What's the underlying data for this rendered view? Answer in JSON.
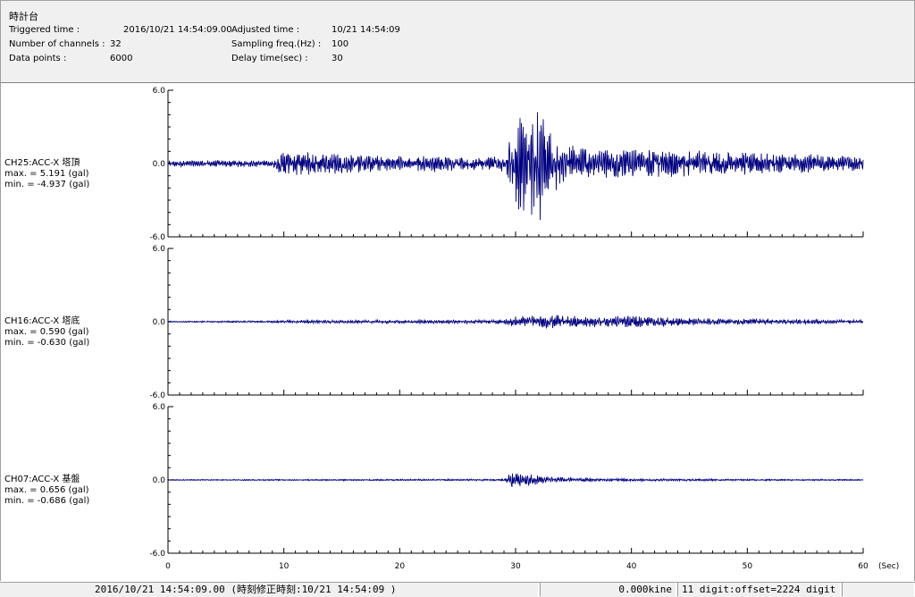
{
  "header": {
    "title": "時計台",
    "triggered_label": "Triggered time :",
    "triggered_value": "2016/10/21 14:54:09.00",
    "channels_label": "Number of channels :",
    "channels_value": "32",
    "datapoints_label": "Data points :",
    "datapoints_value": "6000",
    "adjusted_label": "Adjusted time :",
    "adjusted_value": "10/21 14:54:09",
    "sampling_label": "Sampling freq.(Hz) :",
    "sampling_value": "100",
    "delay_label": "Delay time(sec) :",
    "delay_value": "30"
  },
  "channels": [
    {
      "name": "CH25:ACC-X 塔頂",
      "max": "max. = 5.191 (gal)",
      "min": "min. = -4.937 (gal)"
    },
    {
      "name": "CH16:ACC-X 塔底",
      "max": "max. = 0.590 (gal)",
      "min": "min. = -0.630 (gal)"
    },
    {
      "name": "CH07:ACC-X 基盤",
      "max": "max. = 0.656 (gal)",
      "min": "min. = -0.686 (gal)"
    }
  ],
  "status": {
    "time": "2016/10/21 14:54:09.00  (時刻修正時刻:10/21 14:54:09  )",
    "kine": "0.000kine",
    "digit": "11 digit:offset=2224 digit"
  },
  "chart_data": {
    "type": "line",
    "x_unit": "(Sec)",
    "xlim": [
      0,
      60
    ],
    "x_ticks": [
      0,
      10,
      20,
      30,
      40,
      50,
      60
    ],
    "y_ticks": [
      "6.0",
      "0.0",
      "-6.0"
    ],
    "ylim": [
      -6,
      6
    ],
    "line_color": "#000080",
    "series": [
      {
        "name": "CH25:ACC-X 塔頂",
        "max": 5.191,
        "min": -4.937,
        "envelope": [
          [
            0,
            0.25
          ],
          [
            9,
            0.3
          ],
          [
            10,
            1.1
          ],
          [
            14,
            0.9
          ],
          [
            20,
            0.7
          ],
          [
            29,
            0.7
          ],
          [
            30,
            3.8
          ],
          [
            31,
            4.6
          ],
          [
            32,
            5.0
          ],
          [
            33,
            2.8
          ],
          [
            35,
            1.5
          ],
          [
            40,
            1.2
          ],
          [
            50,
            1.0
          ],
          [
            60,
            0.6
          ]
        ]
      },
      {
        "name": "CH16:ACC-X 塔底",
        "max": 0.59,
        "min": -0.63,
        "envelope": [
          [
            0,
            0.05
          ],
          [
            9,
            0.08
          ],
          [
            10,
            0.12
          ],
          [
            20,
            0.14
          ],
          [
            29,
            0.18
          ],
          [
            30,
            0.45
          ],
          [
            33,
            0.6
          ],
          [
            36,
            0.45
          ],
          [
            41,
            0.5
          ],
          [
            45,
            0.3
          ],
          [
            60,
            0.15
          ]
        ]
      },
      {
        "name": "CH07:ACC-X 基盤",
        "max": 0.656,
        "min": -0.686,
        "envelope": [
          [
            0,
            0.04
          ],
          [
            10,
            0.06
          ],
          [
            20,
            0.07
          ],
          [
            29,
            0.08
          ],
          [
            29.6,
            0.65
          ],
          [
            31,
            0.5
          ],
          [
            33,
            0.25
          ],
          [
            40,
            0.1
          ],
          [
            60,
            0.05
          ]
        ]
      }
    ]
  }
}
